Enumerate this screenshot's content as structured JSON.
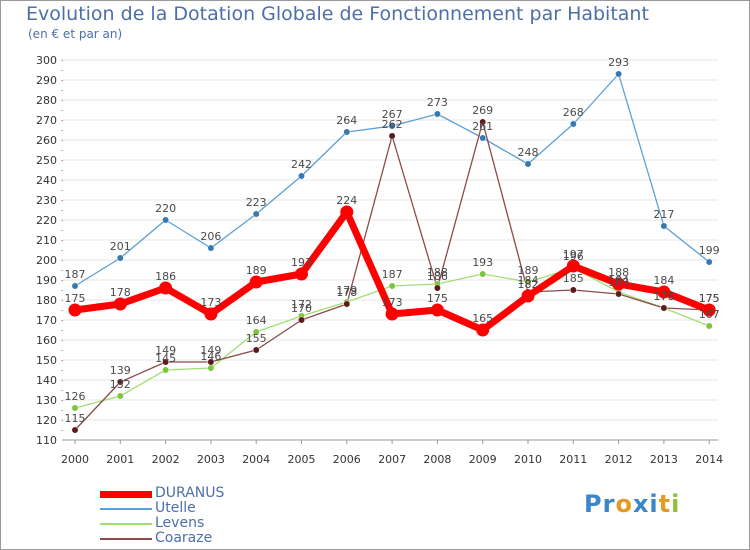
{
  "header": {
    "title": "Evolution de la Dotation Globale de Fonctionnement par Habitant",
    "subtitle": "(en € et par an)"
  },
  "logo": {
    "text": "Proxiti",
    "letters": [
      "P",
      "r",
      "o",
      "x",
      "i",
      "t",
      "i"
    ]
  },
  "colors": {
    "background": "#ffffff",
    "grid": "#e6e6e6",
    "axis": "#999999",
    "text": "#333333",
    "title": "#4d6fa8",
    "logo": [
      "#3a86c8",
      "#3a86c8",
      "#e69a21",
      "#3a86c8",
      "#3a86c8",
      "#e69a21",
      "#8fc03a"
    ]
  },
  "chart_data": {
    "type": "line",
    "title": "Evolution de la Dotation Globale de Fonctionnement par Habitant",
    "subtitle": "(en € et par an)",
    "xlabel": "",
    "ylabel": "",
    "ylim": [
      110,
      300
    ],
    "yticks": [
      110,
      120,
      130,
      140,
      150,
      160,
      170,
      180,
      190,
      200,
      210,
      220,
      230,
      240,
      250,
      260,
      270,
      280,
      290,
      300
    ],
    "grid": true,
    "legend_position": "bottom-left",
    "x": [
      "2000",
      "2001",
      "2002",
      "2003",
      "2004",
      "2005",
      "2006",
      "2007",
      "2008",
      "2009",
      "2010",
      "2011",
      "2012",
      "2013",
      "2014"
    ],
    "series": [
      {
        "name": "Utelle",
        "color": "#5aa0d6",
        "point_color": "#3778b3",
        "width": 1.3,
        "values": [
          187,
          201,
          220,
          206,
          223,
          242,
          264,
          267,
          273,
          261,
          248,
          268,
          293,
          217,
          199
        ]
      },
      {
        "name": "Levens",
        "color": "#9fe070",
        "point_color": "#7bc63b",
        "width": 1.3,
        "values": [
          126,
          132,
          145,
          146,
          164,
          172,
          179,
          187,
          188,
          193,
          189,
          196,
          184,
          176,
          167
        ]
      },
      {
        "name": "Coaraze",
        "color": "#8c4a4a",
        "point_color": "#5c1a1a",
        "width": 1.3,
        "values": [
          115,
          139,
          149,
          149,
          155,
          170,
          178,
          262,
          186,
          269,
          184,
          185,
          183,
          176,
          175
        ]
      },
      {
        "name": "DURANUS",
        "color": "#ff0000",
        "point_color": "#ff0000",
        "width": 7,
        "values": [
          175,
          178,
          186,
          173,
          189,
          193,
          224,
          173,
          175,
          165,
          182,
          197,
          188,
          184,
          175
        ]
      }
    ]
  }
}
